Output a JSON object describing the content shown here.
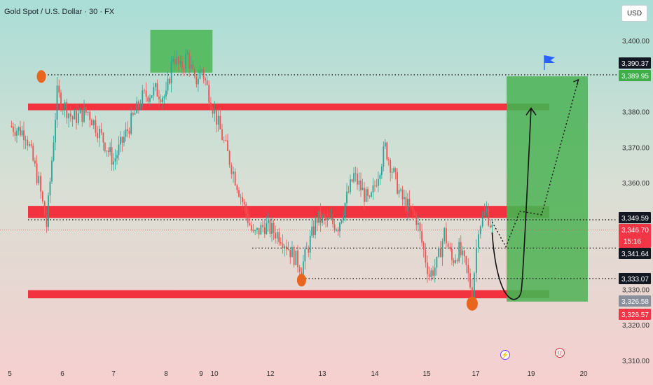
{
  "symbol_title": "Gold Spot / U.S. Dollar · 30 · FX",
  "currency": "USD",
  "colors": {
    "up": "#26a69a",
    "down": "#ef5350",
    "resistance": "#f2323f",
    "target": "#3fae48",
    "marker": "#e9641c"
  },
  "events": {
    "flash_icon": "lightning-icon",
    "us_flag_icon": "us-flag-icon",
    "target_flag_icon": "blue-flag-icon"
  },
  "chart_data": {
    "type": "candlestick",
    "title": "Gold Spot / U.S. Dollar · 30 · FX",
    "xlabel": "",
    "ylabel": "",
    "ylim": [
      3307,
      3405
    ],
    "yticks": [
      3310,
      3320,
      3330,
      3340,
      3350,
      3360,
      3370,
      3380,
      3390,
      3400
    ],
    "ytick_labels": [
      "3,310.00",
      "3,320.00",
      "3,330.00",
      "3,340.00",
      "3,350.00",
      "3,360.00",
      "3,370.00",
      "3,380.00",
      "3,390.00",
      "3,400.00"
    ],
    "xticks": [
      "5",
      "6",
      "7",
      "8",
      "9",
      "10",
      "12",
      "13",
      "14",
      "15",
      "17",
      "19",
      "20"
    ],
    "grid": false,
    "price_path": [
      [
        5.0,
        3376
      ],
      [
        5.3,
        3374
      ],
      [
        5.55,
        3360
      ],
      [
        5.7,
        3348
      ],
      [
        5.9,
        3385
      ],
      [
        6.2,
        3378
      ],
      [
        6.5,
        3380
      ],
      [
        6.8,
        3372
      ],
      [
        7.0,
        3366
      ],
      [
        7.3,
        3376
      ],
      [
        7.55,
        3384
      ],
      [
        7.8,
        3386
      ],
      [
        8.0,
        3384
      ],
      [
        8.3,
        3396
      ],
      [
        8.6,
        3392
      ],
      [
        8.9,
        3396
      ],
      [
        9.2,
        3388
      ],
      [
        9.5,
        3392
      ],
      [
        9.8,
        3385
      ],
      [
        10.1,
        3378
      ],
      [
        10.5,
        3368
      ],
      [
        10.9,
        3358
      ],
      [
        11.4,
        3345
      ],
      [
        11.8,
        3348
      ],
      [
        12.2,
        3345
      ],
      [
        12.6,
        3336
      ],
      [
        12.9,
        3350
      ],
      [
        13.3,
        3348
      ],
      [
        13.6,
        3362
      ],
      [
        13.9,
        3354
      ],
      [
        14.2,
        3370
      ],
      [
        14.5,
        3356
      ],
      [
        14.8,
        3350
      ],
      [
        15.1,
        3334
      ],
      [
        15.4,
        3337
      ],
      [
        15.7,
        3346
      ],
      [
        16.0,
        3338
      ],
      [
        16.3,
        3341
      ],
      [
        16.6,
        3336
      ],
      [
        16.85,
        3329
      ],
      [
        17.1,
        3348
      ],
      [
        17.4,
        3352
      ],
      [
        17.6,
        3347
      ]
    ],
    "resistance_zones": [
      {
        "top": 3382.3,
        "bottom": 3380.4
      },
      {
        "top": 3353.5,
        "bottom": 3350.1
      },
      {
        "top": 3329.8,
        "bottom": 3327.5
      }
    ],
    "supply_box": {
      "x_start": 7.7,
      "x_end": 9.95,
      "top": 3403,
      "bottom": 3391
    },
    "target_zone": {
      "x_start": 17.6,
      "x_end": 19.9,
      "top": 3389.95,
      "bottom": 3326.57
    },
    "levels": [
      {
        "value": 3390.37,
        "label": "3,390.37",
        "kind": "black"
      },
      {
        "value": 3389.95,
        "label": "3,389.95",
        "kind": "green"
      },
      {
        "value": 3349.59,
        "label": "3,349.59",
        "kind": "black"
      },
      {
        "value": 3346.7,
        "label": "3,346.70",
        "kind": "red",
        "sub": "15:16"
      },
      {
        "value": 3341.64,
        "label": "3,341.64",
        "kind": "black"
      },
      {
        "value": 3333.07,
        "label": "3,333.07",
        "kind": "black"
      },
      {
        "value": 3326.58,
        "label": "3,326.58",
        "kind": "grey"
      },
      {
        "value": 3326.57,
        "label": "3,326.57",
        "kind": "red"
      }
    ],
    "markers": [
      {
        "x": 5.6,
        "y": 3389.9
      },
      {
        "x": 12.6,
        "y": 3332.6
      },
      {
        "x": 16.85,
        "y": 3326.0
      }
    ],
    "projection_solid": [
      [
        17.6,
        3346
      ],
      [
        18.2,
        3328
      ],
      [
        19.0,
        3381
      ]
    ],
    "projection_dotted": [
      [
        17.6,
        3349
      ],
      [
        18.1,
        3342
      ],
      [
        18.6,
        3352
      ],
      [
        19.2,
        3351
      ],
      [
        19.9,
        3389
      ]
    ]
  }
}
